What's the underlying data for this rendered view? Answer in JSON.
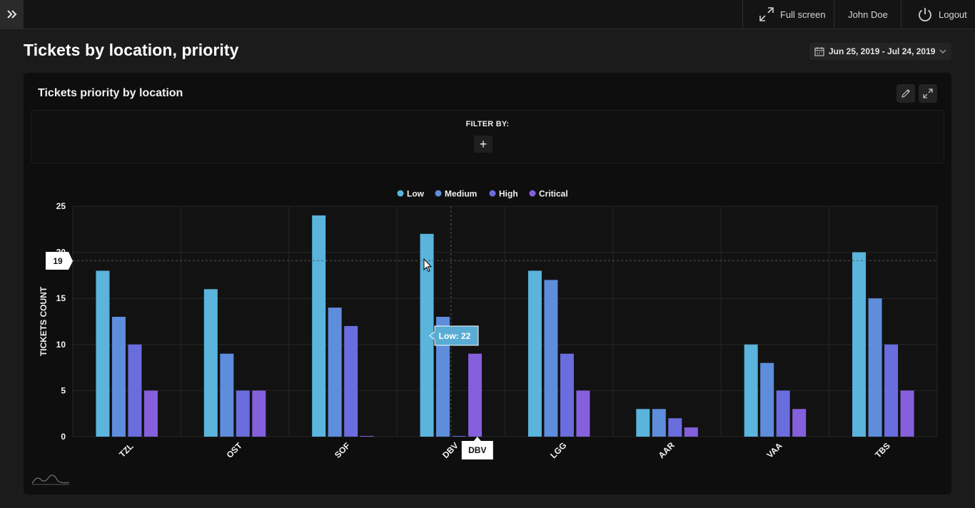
{
  "topbar": {
    "fullscreen_label": "Full screen",
    "user_name": "John Doe",
    "logout_label": "Logout"
  },
  "page": {
    "title": "Tickets by location, priority",
    "date_range": "Jun 25, 2019 - Jul 24, 2019"
  },
  "card": {
    "title": "Tickets priority by location",
    "filter_label": "FILTER BY:",
    "filter_add": "+"
  },
  "chart_data": {
    "type": "bar",
    "title": "Tickets priority by location",
    "xlabel": "",
    "ylabel": "TICKETS COUNT",
    "ylim": [
      0,
      25
    ],
    "yticks": [
      0,
      5,
      10,
      15,
      20,
      25
    ],
    "categories": [
      "TZL",
      "OST",
      "SOF",
      "DBV",
      "LGG",
      "AAR",
      "VAA",
      "TBS"
    ],
    "legend_position": "top-center",
    "series": [
      {
        "name": "Low",
        "color": "#5ab4dc",
        "values": [
          18,
          16,
          24,
          22,
          18,
          3,
          10,
          20
        ]
      },
      {
        "name": "Medium",
        "color": "#5e8ddb",
        "values": [
          13,
          9,
          14,
          13,
          17,
          3,
          8,
          15
        ]
      },
      {
        "name": "High",
        "color": "#6a6ddd",
        "values": [
          10,
          5,
          12,
          0,
          9,
          2,
          5,
          10
        ]
      },
      {
        "name": "Critical",
        "color": "#8560dc",
        "values": [
          5,
          5,
          0,
          9,
          5,
          1,
          3,
          5
        ]
      }
    ],
    "crosshair": {
      "y_value_label": "19",
      "y_value": 19.1,
      "category_label": "DBV",
      "category_index": 3
    },
    "tooltip": {
      "text": "Low: 22",
      "series_index": 0,
      "category_index": 3
    }
  },
  "colors": {
    "background": "#1b1b1b",
    "card": "#0e0e0e",
    "grid": "#262626"
  }
}
